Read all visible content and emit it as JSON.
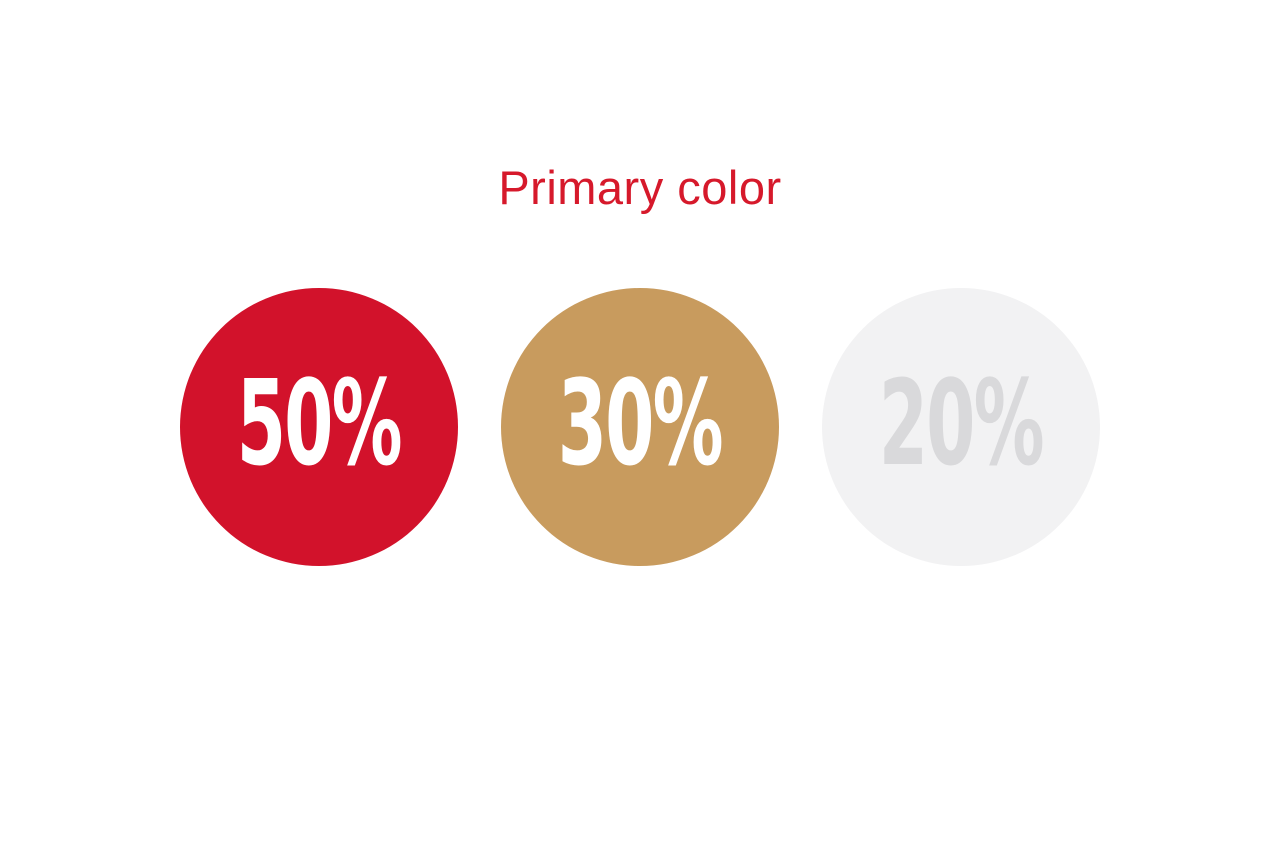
{
  "page": {
    "background": "#FFFFFF"
  },
  "title": {
    "text": "Primary color",
    "color": "#D6192B"
  },
  "circles": [
    {
      "name": "red",
      "label": "50%",
      "value": 50,
      "bg": "#D2122B",
      "fg": "#FFFFFF"
    },
    {
      "name": "gold",
      "label": "30%",
      "value": 30,
      "bg": "#C89B5E",
      "fg": "#FFFFFF"
    },
    {
      "name": "light-gray",
      "label": "20%",
      "value": 20,
      "bg": "#F2F2F3",
      "fg": "#D9D9DB"
    }
  ],
  "chart_data": {
    "type": "pie",
    "title": "Primary color",
    "categories": [
      "red",
      "gold",
      "light-gray"
    ],
    "values": [
      50,
      30,
      20
    ],
    "unit": "%",
    "colors": [
      "#D2122B",
      "#C89B5E",
      "#F2F2F3"
    ],
    "label_colors": [
      "#FFFFFF",
      "#FFFFFF",
      "#D9D9DB"
    ],
    "legend": "none",
    "layout": "three equal circles in a horizontal row with percentage labels centered inside; red title centered above"
  }
}
